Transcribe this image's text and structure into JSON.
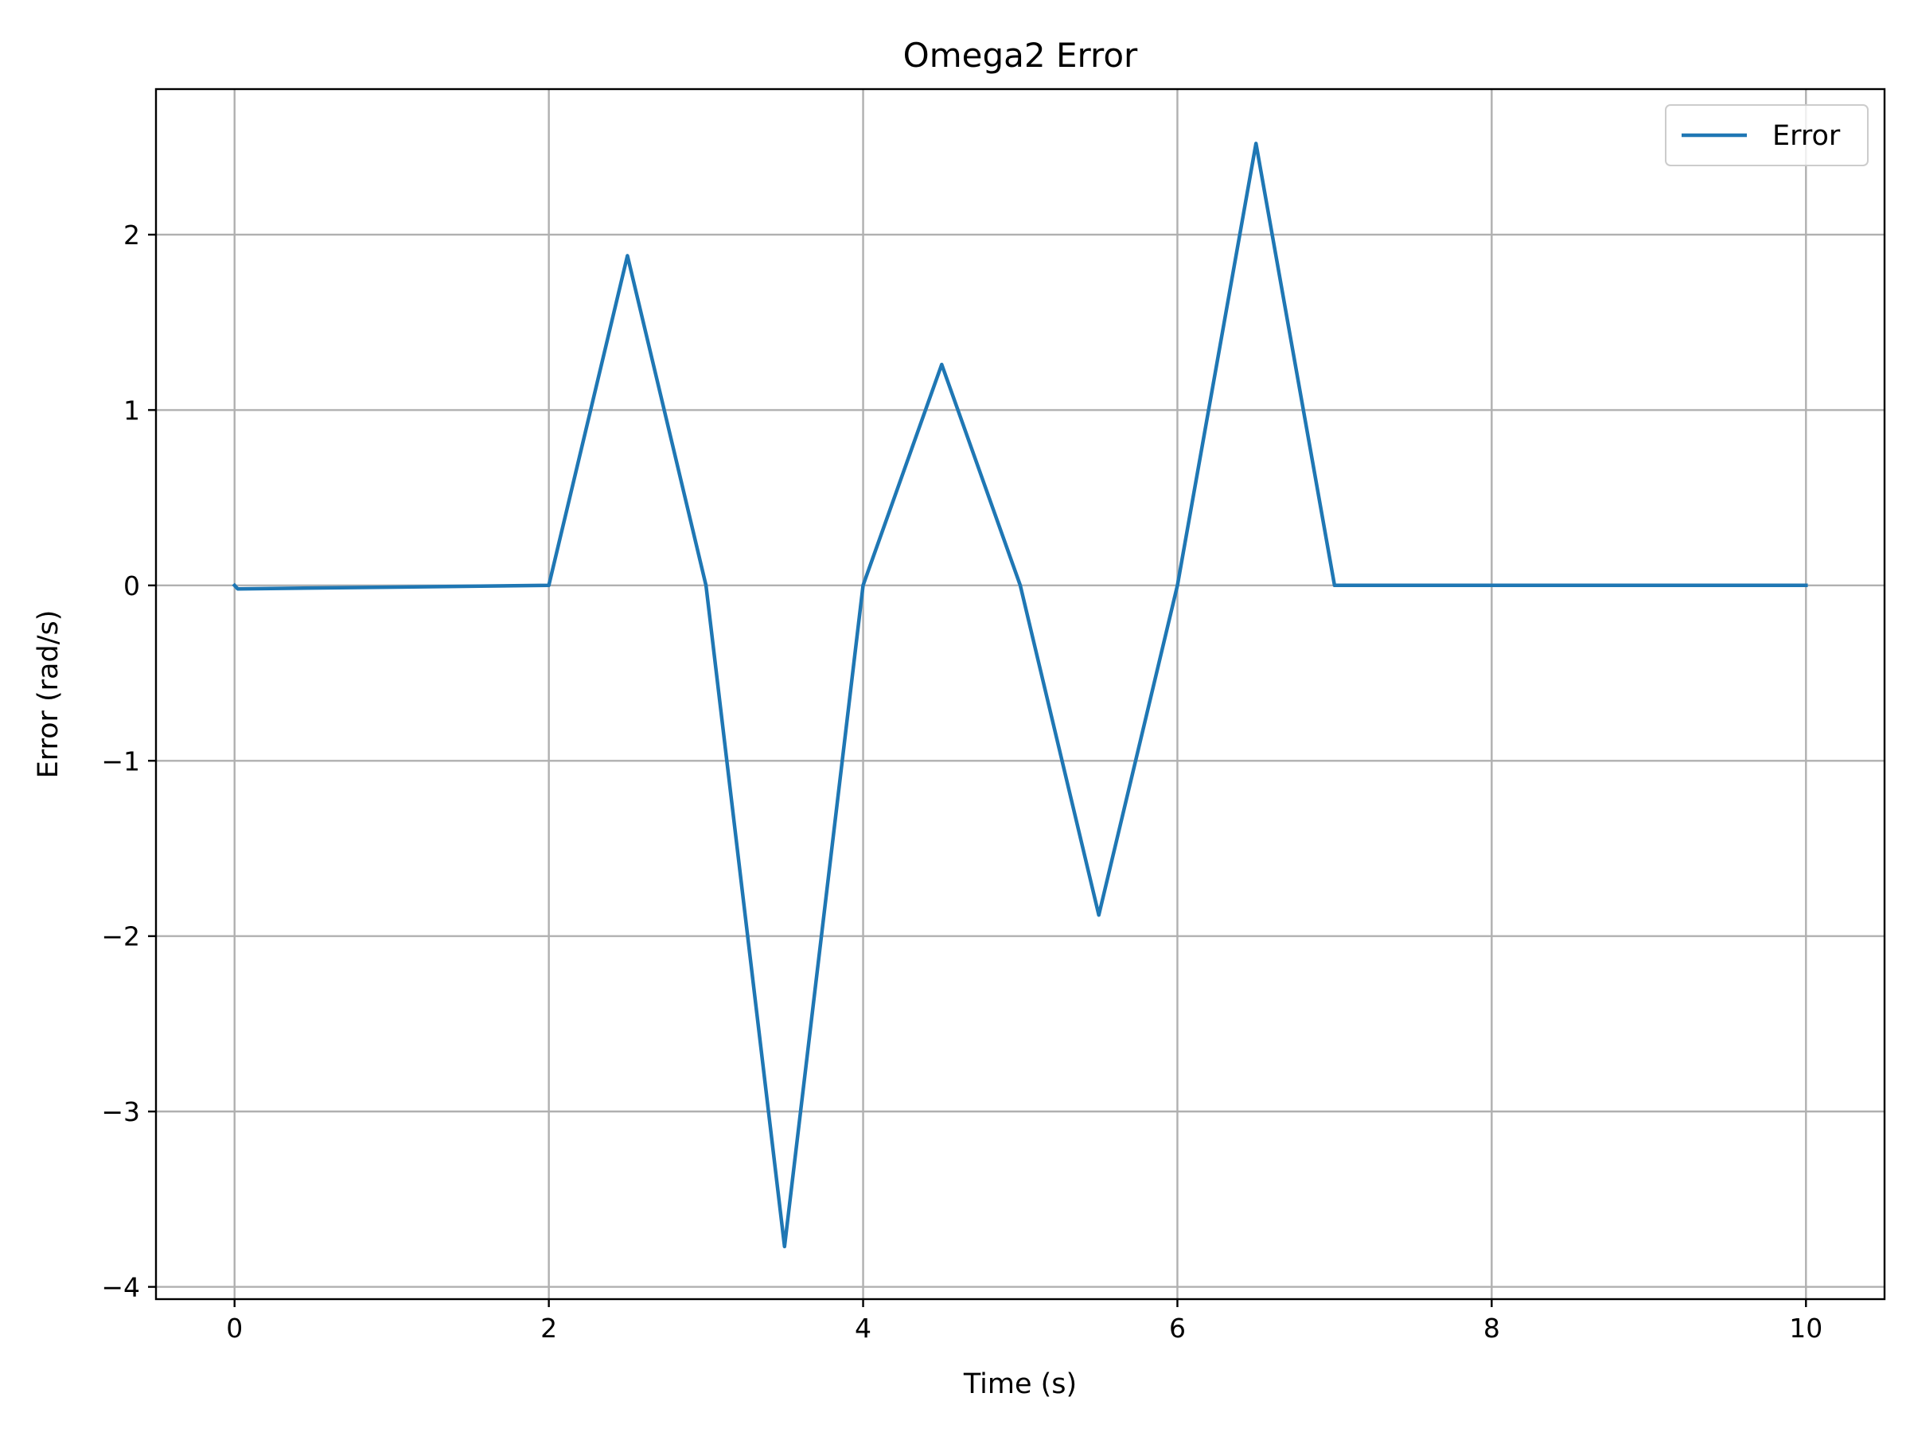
{
  "chart_data": {
    "type": "line",
    "title": "Omega2 Error",
    "xlabel": "Time (s)",
    "ylabel": "Error (rad/s)",
    "xlim": [
      -0.5,
      10.5
    ],
    "ylim": [
      -4.07,
      2.83
    ],
    "xticks": [
      0,
      2,
      4,
      6,
      8,
      10
    ],
    "yticks": [
      -4,
      -3,
      -2,
      -1,
      0,
      1,
      2
    ],
    "xtick_labels": [
      "0",
      "2",
      "4",
      "6",
      "8",
      "10"
    ],
    "ytick_labels": [
      "−4",
      "−3",
      "−2",
      "−1",
      "0",
      "1",
      "2"
    ],
    "grid": true,
    "legend_position": "top-right",
    "series": [
      {
        "name": "Error",
        "color": "#1f77b4",
        "x": [
          0,
          0.02,
          2,
          2.5,
          3,
          3.5,
          4,
          4.5,
          5,
          5.5,
          6,
          6.5,
          7,
          10
        ],
        "y": [
          0,
          -0.02,
          0,
          1.88,
          0,
          -3.77,
          0,
          1.26,
          0,
          -1.88,
          0,
          2.52,
          0,
          0
        ]
      }
    ]
  }
}
